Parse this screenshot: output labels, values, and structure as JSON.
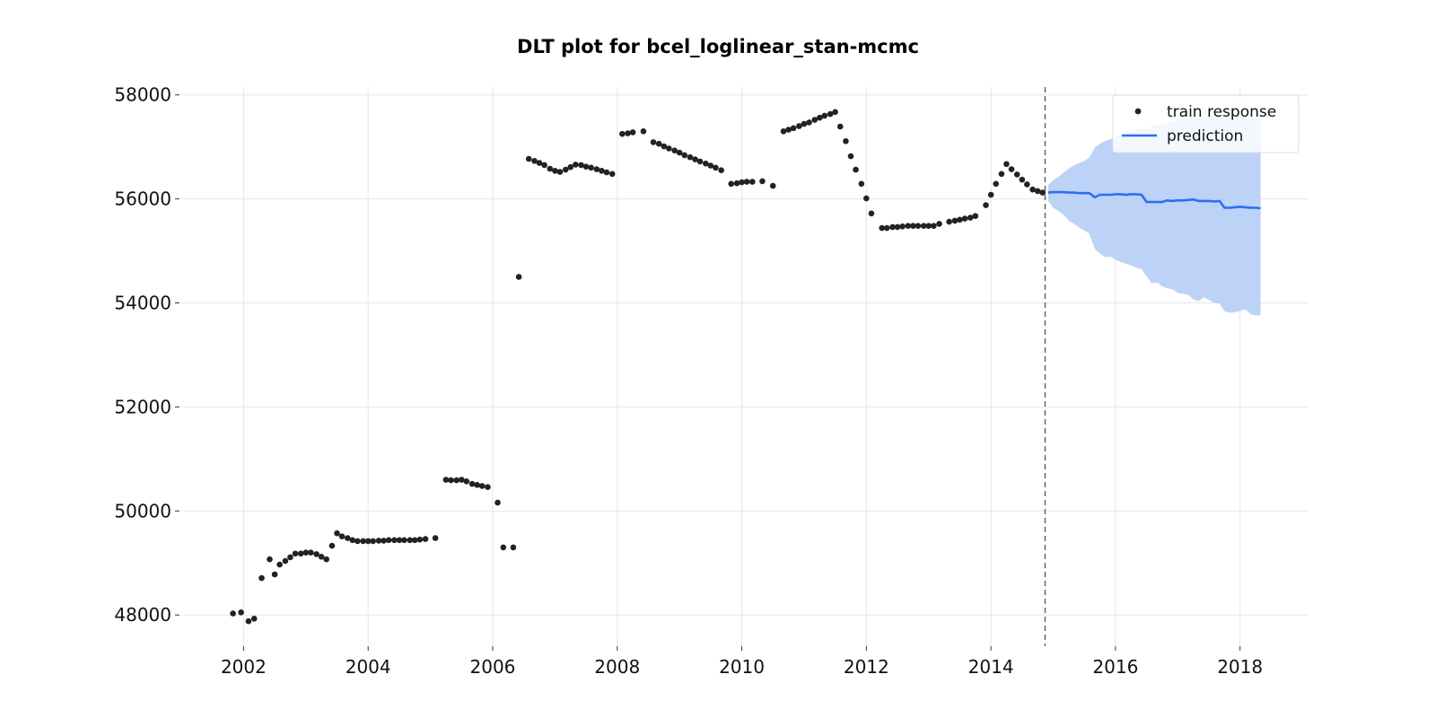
{
  "chart_data": {
    "type": "line",
    "title": "DLT plot for bcel_loglinear_stan-mcmc",
    "xlabel": "",
    "ylabel": "",
    "xlim": [
      2001.0,
      2019.1
    ],
    "ylim": [
      47400,
      58150
    ],
    "x_ticks": [
      2002,
      2004,
      2006,
      2008,
      2010,
      2012,
      2014,
      2016,
      2018
    ],
    "x_tick_labels": [
      "2002",
      "2004",
      "2006",
      "2008",
      "2010",
      "2012",
      "2014",
      "2016",
      "2018"
    ],
    "y_ticks": [
      48000,
      50000,
      52000,
      54000,
      56000,
      58000
    ],
    "y_tick_labels": [
      "48000",
      "50000",
      "52000",
      "54000",
      "56000",
      "58000"
    ],
    "grid": true,
    "legend_position": "top-right",
    "cutoff_x": 2014.87,
    "colors": {
      "train": "#222222",
      "prediction": "#2b6ff2",
      "band": "#bcd2f7",
      "cutoff": "#666666"
    },
    "series": [
      {
        "name": "train response",
        "type": "scatter",
        "points": [
          [
            2001.83,
            48030
          ],
          [
            2001.96,
            48050
          ],
          [
            2002.08,
            47880
          ],
          [
            2002.17,
            47930
          ],
          [
            2002.29,
            48710
          ],
          [
            2002.42,
            49070
          ],
          [
            2002.5,
            48780
          ],
          [
            2002.58,
            48970
          ],
          [
            2002.67,
            49040
          ],
          [
            2002.75,
            49110
          ],
          [
            2002.83,
            49180
          ],
          [
            2002.92,
            49180
          ],
          [
            2003.0,
            49200
          ],
          [
            2003.08,
            49200
          ],
          [
            2003.17,
            49170
          ],
          [
            2003.25,
            49120
          ],
          [
            2003.33,
            49070
          ],
          [
            2003.42,
            49330
          ],
          [
            2003.5,
            49570
          ],
          [
            2003.58,
            49510
          ],
          [
            2003.67,
            49480
          ],
          [
            2003.75,
            49440
          ],
          [
            2003.83,
            49420
          ],
          [
            2003.92,
            49420
          ],
          [
            2004.0,
            49420
          ],
          [
            2004.08,
            49420
          ],
          [
            2004.17,
            49430
          ],
          [
            2004.25,
            49430
          ],
          [
            2004.33,
            49440
          ],
          [
            2004.42,
            49440
          ],
          [
            2004.5,
            49440
          ],
          [
            2004.58,
            49440
          ],
          [
            2004.67,
            49440
          ],
          [
            2004.75,
            49440
          ],
          [
            2004.83,
            49450
          ],
          [
            2004.92,
            49460
          ],
          [
            2005.08,
            49480
          ],
          [
            2005.25,
            50600
          ],
          [
            2005.33,
            50590
          ],
          [
            2005.42,
            50590
          ],
          [
            2005.5,
            50600
          ],
          [
            2005.58,
            50570
          ],
          [
            2005.67,
            50520
          ],
          [
            2005.75,
            50500
          ],
          [
            2005.83,
            50480
          ],
          [
            2005.92,
            50460
          ],
          [
            2006.08,
            50160
          ],
          [
            2006.17,
            49300
          ],
          [
            2006.33,
            49300
          ],
          [
            2006.42,
            54500
          ],
          [
            2006.58,
            56770
          ],
          [
            2006.67,
            56730
          ],
          [
            2006.75,
            56690
          ],
          [
            2006.83,
            56650
          ],
          [
            2006.92,
            56580
          ],
          [
            2007.0,
            56540
          ],
          [
            2007.08,
            56520
          ],
          [
            2007.17,
            56560
          ],
          [
            2007.25,
            56610
          ],
          [
            2007.33,
            56660
          ],
          [
            2007.42,
            56650
          ],
          [
            2007.5,
            56620
          ],
          [
            2007.58,
            56600
          ],
          [
            2007.67,
            56570
          ],
          [
            2007.75,
            56540
          ],
          [
            2007.83,
            56510
          ],
          [
            2007.92,
            56480
          ],
          [
            2008.08,
            57250
          ],
          [
            2008.17,
            57260
          ],
          [
            2008.25,
            57280
          ],
          [
            2008.42,
            57300
          ],
          [
            2008.58,
            57090
          ],
          [
            2008.67,
            57060
          ],
          [
            2008.75,
            57010
          ],
          [
            2008.83,
            56970
          ],
          [
            2008.92,
            56930
          ],
          [
            2009.0,
            56890
          ],
          [
            2009.08,
            56840
          ],
          [
            2009.17,
            56800
          ],
          [
            2009.25,
            56760
          ],
          [
            2009.33,
            56720
          ],
          [
            2009.42,
            56680
          ],
          [
            2009.5,
            56640
          ],
          [
            2009.58,
            56600
          ],
          [
            2009.67,
            56550
          ],
          [
            2009.83,
            56290
          ],
          [
            2009.92,
            56300
          ],
          [
            2010.0,
            56320
          ],
          [
            2010.08,
            56330
          ],
          [
            2010.17,
            56330
          ],
          [
            2010.33,
            56340
          ],
          [
            2010.5,
            56250
          ],
          [
            2010.67,
            57300
          ],
          [
            2010.75,
            57330
          ],
          [
            2010.83,
            57360
          ],
          [
            2010.92,
            57400
          ],
          [
            2011.0,
            57440
          ],
          [
            2011.08,
            57470
          ],
          [
            2011.17,
            57520
          ],
          [
            2011.25,
            57560
          ],
          [
            2011.33,
            57600
          ],
          [
            2011.42,
            57630
          ],
          [
            2011.5,
            57670
          ],
          [
            2011.58,
            57390
          ],
          [
            2011.67,
            57110
          ],
          [
            2011.75,
            56820
          ],
          [
            2011.83,
            56560
          ],
          [
            2011.92,
            56290
          ],
          [
            2012.0,
            56010
          ],
          [
            2012.08,
            55720
          ],
          [
            2012.25,
            55440
          ],
          [
            2012.33,
            55440
          ],
          [
            2012.42,
            55460
          ],
          [
            2012.5,
            55460
          ],
          [
            2012.58,
            55470
          ],
          [
            2012.67,
            55480
          ],
          [
            2012.75,
            55480
          ],
          [
            2012.83,
            55480
          ],
          [
            2012.92,
            55480
          ],
          [
            2013.0,
            55480
          ],
          [
            2013.08,
            55480
          ],
          [
            2013.17,
            55520
          ],
          [
            2013.33,
            55560
          ],
          [
            2013.42,
            55580
          ],
          [
            2013.5,
            55600
          ],
          [
            2013.58,
            55620
          ],
          [
            2013.67,
            55640
          ],
          [
            2013.75,
            55670
          ],
          [
            2013.92,
            55880
          ],
          [
            2014.0,
            56080
          ],
          [
            2014.08,
            56290
          ],
          [
            2014.17,
            56480
          ],
          [
            2014.25,
            56670
          ],
          [
            2014.33,
            56570
          ],
          [
            2014.42,
            56470
          ],
          [
            2014.5,
            56370
          ],
          [
            2014.58,
            56280
          ],
          [
            2014.67,
            56180
          ],
          [
            2014.75,
            56150
          ],
          [
            2014.83,
            56120
          ]
        ]
      },
      {
        "name": "prediction",
        "type": "line",
        "points": [
          [
            2014.92,
            56120
          ],
          [
            2015.0,
            56130
          ],
          [
            2015.08,
            56130
          ],
          [
            2015.17,
            56130
          ],
          [
            2015.25,
            56120
          ],
          [
            2015.33,
            56120
          ],
          [
            2015.42,
            56110
          ],
          [
            2015.5,
            56110
          ],
          [
            2015.58,
            56110
          ],
          [
            2015.67,
            56030
          ],
          [
            2015.75,
            56080
          ],
          [
            2015.83,
            56080
          ],
          [
            2015.92,
            56080
          ],
          [
            2016.0,
            56090
          ],
          [
            2016.08,
            56090
          ],
          [
            2016.17,
            56080
          ],
          [
            2016.25,
            56090
          ],
          [
            2016.33,
            56090
          ],
          [
            2016.42,
            56080
          ],
          [
            2016.5,
            55940
          ],
          [
            2016.58,
            55940
          ],
          [
            2016.67,
            55940
          ],
          [
            2016.75,
            55940
          ],
          [
            2016.83,
            55970
          ],
          [
            2016.92,
            55960
          ],
          [
            2017.0,
            55970
          ],
          [
            2017.08,
            55970
          ],
          [
            2017.17,
            55980
          ],
          [
            2017.25,
            55990
          ],
          [
            2017.33,
            55960
          ],
          [
            2017.42,
            55960
          ],
          [
            2017.5,
            55960
          ],
          [
            2017.58,
            55950
          ],
          [
            2017.67,
            55960
          ],
          [
            2017.75,
            55830
          ],
          [
            2017.83,
            55830
          ],
          [
            2017.92,
            55840
          ],
          [
            2018.0,
            55850
          ],
          [
            2018.08,
            55840
          ],
          [
            2018.17,
            55830
          ],
          [
            2018.25,
            55830
          ],
          [
            2018.33,
            55820
          ]
        ],
        "band": [
          [
            2014.92,
            56270,
            55960
          ],
          [
            2015.0,
            56360,
            55830
          ],
          [
            2015.08,
            56420,
            55770
          ],
          [
            2015.17,
            56510,
            55690
          ],
          [
            2015.25,
            56580,
            55580
          ],
          [
            2015.33,
            56640,
            55520
          ],
          [
            2015.42,
            56690,
            55450
          ],
          [
            2015.5,
            56730,
            55390
          ],
          [
            2015.58,
            56790,
            55330
          ],
          [
            2015.67,
            56990,
            55030
          ],
          [
            2015.75,
            57060,
            54950
          ],
          [
            2015.83,
            57110,
            54880
          ],
          [
            2015.92,
            57150,
            54890
          ],
          [
            2016.0,
            57190,
            54830
          ],
          [
            2016.08,
            57240,
            54790
          ],
          [
            2016.17,
            57280,
            54750
          ],
          [
            2016.25,
            57310,
            54720
          ],
          [
            2016.33,
            57340,
            54680
          ],
          [
            2016.42,
            57360,
            54650
          ],
          [
            2016.5,
            57320,
            54510
          ],
          [
            2016.58,
            57390,
            54380
          ],
          [
            2016.67,
            57430,
            54390
          ],
          [
            2016.75,
            57450,
            54320
          ],
          [
            2016.83,
            57470,
            54280
          ],
          [
            2016.92,
            57490,
            54260
          ],
          [
            2017.0,
            57510,
            54190
          ],
          [
            2017.08,
            57530,
            54180
          ],
          [
            2017.17,
            57560,
            54150
          ],
          [
            2017.25,
            57590,
            54070
          ],
          [
            2017.33,
            57560,
            54030
          ],
          [
            2017.42,
            57570,
            54110
          ],
          [
            2017.5,
            57580,
            54060
          ],
          [
            2017.58,
            57580,
            54000
          ],
          [
            2017.67,
            57590,
            53990
          ],
          [
            2017.75,
            57560,
            53840
          ],
          [
            2017.83,
            57570,
            53810
          ],
          [
            2017.92,
            57580,
            53820
          ],
          [
            2018.0,
            57590,
            53850
          ],
          [
            2018.08,
            57590,
            53880
          ],
          [
            2018.17,
            57560,
            53780
          ],
          [
            2018.25,
            57570,
            53760
          ],
          [
            2018.33,
            57570,
            53760
          ]
        ]
      }
    ]
  }
}
